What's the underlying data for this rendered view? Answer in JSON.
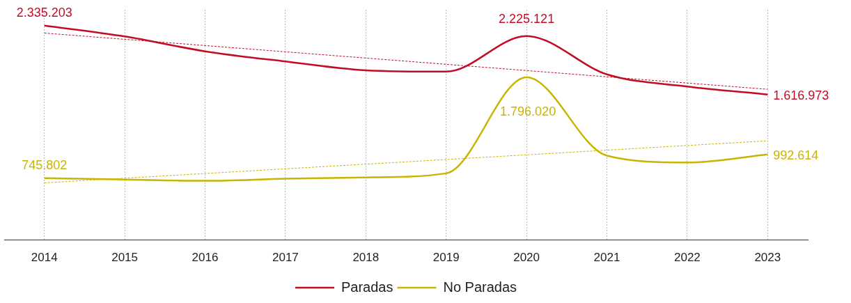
{
  "chart_data": {
    "type": "line",
    "categories": [
      "2014",
      "2015",
      "2016",
      "2017",
      "2018",
      "2019",
      "2020",
      "2021",
      "2022",
      "2023"
    ],
    "series": [
      {
        "name": "Paradas",
        "color": "#c00d25",
        "values": [
          2335203,
          2222000,
          2067000,
          1961000,
          1869000,
          1855000,
          2225121,
          1827000,
          1700000,
          1616973
        ],
        "value_labels": [
          "2.335.203",
          null,
          null,
          null,
          null,
          null,
          "2.225.121",
          null,
          null,
          "1.616.973"
        ]
      },
      {
        "name": "No Paradas",
        "color": "#c9b400",
        "values": [
          745802,
          731000,
          717000,
          739000,
          753000,
          795000,
          1796020,
          979000,
          908000,
          992614
        ],
        "value_labels": [
          "745.802",
          null,
          null,
          null,
          null,
          null,
          "1.796.020",
          null,
          null,
          "992.614"
        ]
      },
      {
        "type": "line",
        "color": "#c00d25",
        "line_style": "dashed",
        "marker": "none",
        "values": [
          2257000,
          null,
          null,
          null,
          null,
          null,
          null,
          null,
          null,
          1671000
        ]
      },
      {
        "type": "line",
        "color": "#c9b400",
        "line_style": "dashed",
        "marker": "none",
        "values": [
          696000,
          null,
          null,
          null,
          null,
          null,
          null,
          null,
          null,
          1134000
        ]
      }
    ],
    "ylim": [
      100000,
      2500000
    ],
    "grid": "x",
    "legend": "bottom",
    "marker": "none",
    "line_style": "solid",
    "tick_labels": "x"
  }
}
